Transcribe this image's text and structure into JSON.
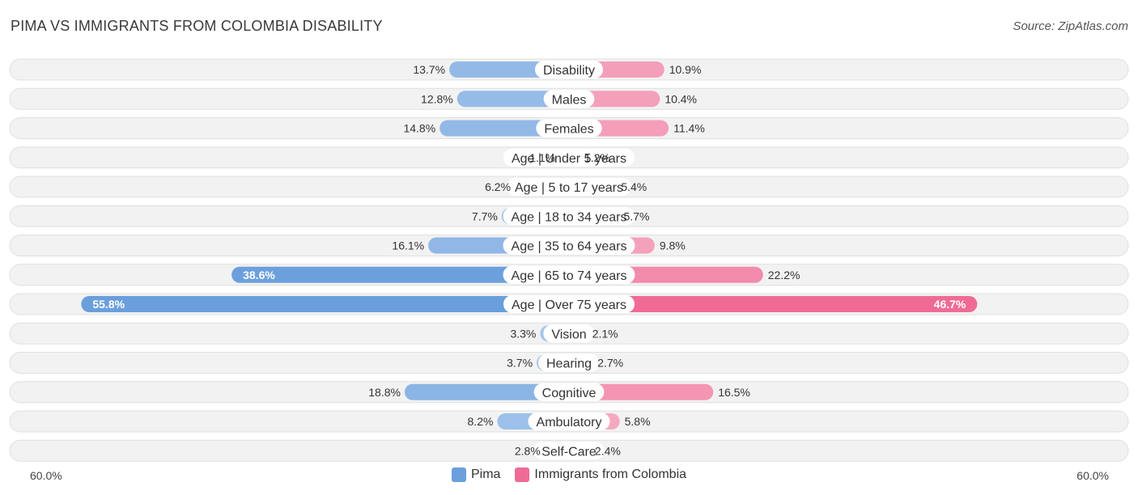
{
  "header": {
    "title": "PIMA VS IMMIGRANTS FROM COLOMBIA DISABILITY",
    "source": "Source: ZipAtlas.com"
  },
  "axis": {
    "left_label": "60.0%",
    "right_label": "60.0%"
  },
  "colors": {
    "left": "#8fb6e3",
    "left_strong": "#6a9fdc",
    "right": "#f4a1bb",
    "right_strong": "#ef6b95",
    "row_bg": "#f2f2f2",
    "row_border": "#e0e0e0"
  },
  "chart_data": {
    "type": "bar",
    "orientation": "horizontal-diverging",
    "title": "PIMA VS IMMIGRANTS FROM COLOMBIA DISABILITY",
    "categories": [
      "Disability",
      "Males",
      "Females",
      "Age | Under 5 years",
      "Age | 5 to 17 years",
      "Age | 18 to 34 years",
      "Age | 35 to 64 years",
      "Age | 65 to 74 years",
      "Age | Over 75 years",
      "Vision",
      "Hearing",
      "Cognitive",
      "Ambulatory",
      "Self-Care"
    ],
    "series": [
      {
        "name": "Pima",
        "values": [
          13.7,
          12.8,
          14.8,
          1.1,
          6.2,
          7.7,
          16.1,
          38.6,
          55.8,
          3.3,
          3.7,
          18.8,
          8.2,
          2.8
        ],
        "labels": [
          "13.7%",
          "12.8%",
          "14.8%",
          "1.1%",
          "6.2%",
          "7.7%",
          "16.1%",
          "38.6%",
          "55.8%",
          "3.3%",
          "3.7%",
          "18.8%",
          "8.2%",
          "2.8%"
        ]
      },
      {
        "name": "Immigrants from Colombia",
        "values": [
          10.9,
          10.4,
          11.4,
          1.2,
          5.4,
          5.7,
          9.8,
          22.2,
          46.7,
          2.1,
          2.7,
          16.5,
          5.8,
          2.4
        ],
        "labels": [
          "10.9%",
          "10.4%",
          "11.4%",
          "1.2%",
          "5.4%",
          "5.7%",
          "9.8%",
          "22.2%",
          "46.7%",
          "2.1%",
          "2.7%",
          "16.5%",
          "5.8%",
          "2.4%"
        ]
      }
    ],
    "xlim": [
      0,
      60
    ],
    "legend": [
      "Pima",
      "Immigrants from Colombia"
    ]
  }
}
